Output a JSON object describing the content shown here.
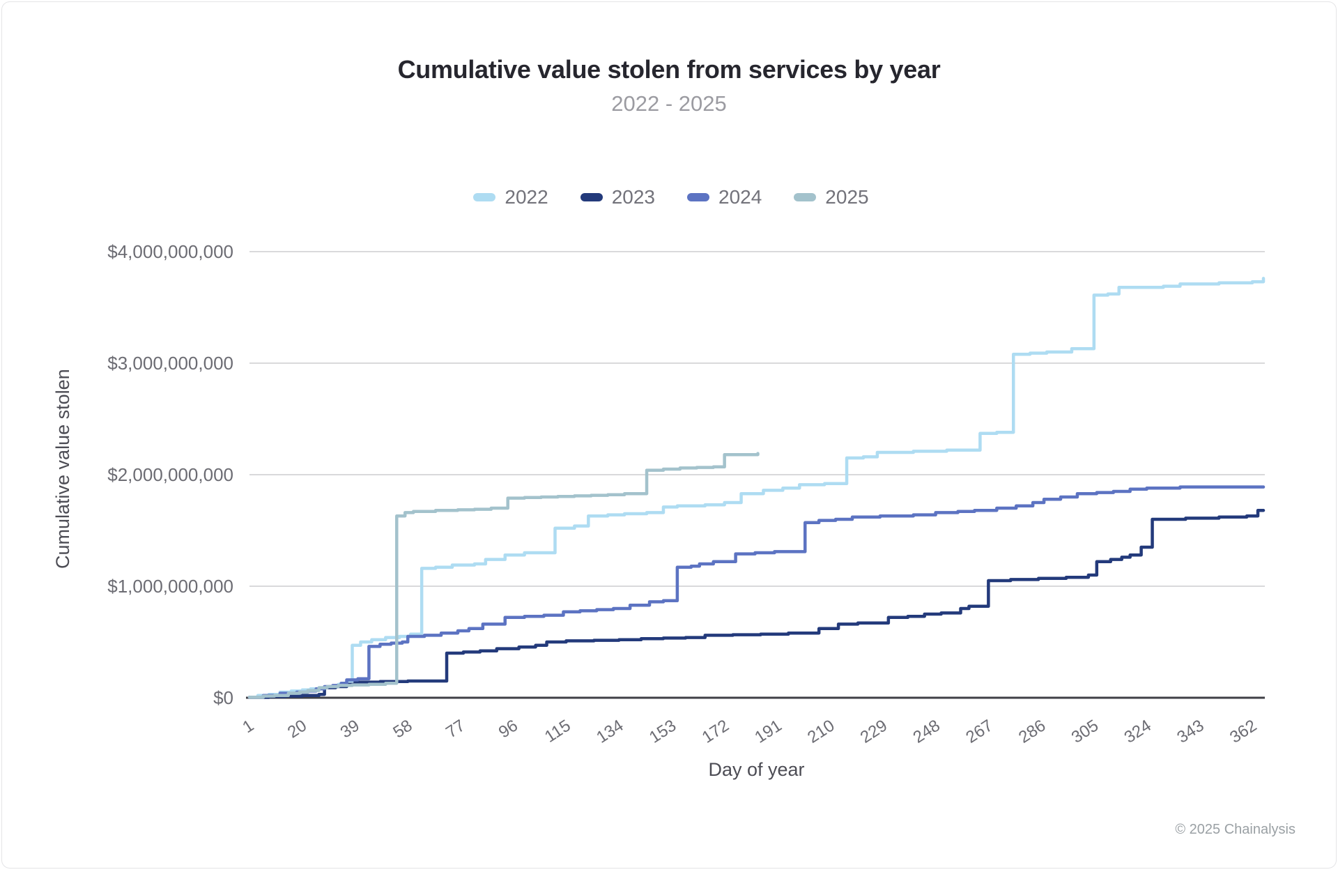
{
  "page": {
    "footer": "© 2025 Chainalysis"
  },
  "chart_data": {
    "type": "line",
    "interpolation": "step-after",
    "title": "Cumulative value stolen from services by year",
    "subtitle": "2022 - 2025",
    "xlabel": "Day of year",
    "ylabel": "Cumulative value stolen",
    "xlim": [
      1,
      366
    ],
    "ylim": [
      0,
      4000000000
    ],
    "x_ticks": [
      1,
      20,
      39,
      58,
      77,
      96,
      115,
      134,
      153,
      172,
      191,
      210,
      229,
      248,
      267,
      286,
      305,
      324,
      343,
      362
    ],
    "y_ticks": [
      0,
      1000000000,
      2000000000,
      3000000000,
      4000000000
    ],
    "y_tick_prefix": "$",
    "grid": "horizontal",
    "legend_position": "top-center",
    "colors": {
      "grid": "#d9d9db",
      "zero_axis": "#3f3f46",
      "title": "#26262e",
      "subtitle": "#9b9ba1",
      "axis_label": "#4c4c54",
      "tick_label": "#6c6c73",
      "legend_label": "#72727a",
      "footer": "#9aa0a4"
    },
    "series": [
      {
        "name": "2022",
        "color": "#aedcf2",
        "points": [
          [
            1,
            5000000
          ],
          [
            4,
            20000000
          ],
          [
            8,
            30000000
          ],
          [
            12,
            50000000
          ],
          [
            16,
            60000000
          ],
          [
            20,
            70000000
          ],
          [
            23,
            80000000
          ],
          [
            26,
            90000000
          ],
          [
            30,
            100000000
          ],
          [
            33,
            120000000
          ],
          [
            36,
            150000000
          ],
          [
            38,
            470000000
          ],
          [
            41,
            500000000
          ],
          [
            45,
            520000000
          ],
          [
            50,
            540000000
          ],
          [
            55,
            550000000
          ],
          [
            59,
            570000000
          ],
          [
            63,
            1160000000
          ],
          [
            68,
            1170000000
          ],
          [
            74,
            1190000000
          ],
          [
            82,
            1200000000
          ],
          [
            86,
            1240000000
          ],
          [
            93,
            1280000000
          ],
          [
            100,
            1300000000
          ],
          [
            111,
            1520000000
          ],
          [
            118,
            1540000000
          ],
          [
            123,
            1630000000
          ],
          [
            130,
            1640000000
          ],
          [
            136,
            1650000000
          ],
          [
            144,
            1660000000
          ],
          [
            150,
            1710000000
          ],
          [
            155,
            1720000000
          ],
          [
            165,
            1730000000
          ],
          [
            172,
            1750000000
          ],
          [
            178,
            1830000000
          ],
          [
            186,
            1860000000
          ],
          [
            193,
            1880000000
          ],
          [
            199,
            1910000000
          ],
          [
            208,
            1920000000
          ],
          [
            216,
            2150000000
          ],
          [
            222,
            2160000000
          ],
          [
            227,
            2200000000
          ],
          [
            240,
            2210000000
          ],
          [
            252,
            2220000000
          ],
          [
            264,
            2370000000
          ],
          [
            270,
            2380000000
          ],
          [
            276,
            3080000000
          ],
          [
            282,
            3090000000
          ],
          [
            288,
            3100000000
          ],
          [
            297,
            3130000000
          ],
          [
            305,
            3610000000
          ],
          [
            310,
            3620000000
          ],
          [
            314,
            3680000000
          ],
          [
            330,
            3690000000
          ],
          [
            336,
            3710000000
          ],
          [
            350,
            3720000000
          ],
          [
            362,
            3730000000
          ],
          [
            366,
            3760000000
          ]
        ]
      },
      {
        "name": "2023",
        "color": "#233a7b",
        "points": [
          [
            1,
            3000000
          ],
          [
            8,
            10000000
          ],
          [
            14,
            15000000
          ],
          [
            20,
            20000000
          ],
          [
            26,
            30000000
          ],
          [
            28,
            90000000
          ],
          [
            32,
            100000000
          ],
          [
            36,
            120000000
          ],
          [
            39,
            140000000
          ],
          [
            48,
            145000000
          ],
          [
            58,
            150000000
          ],
          [
            72,
            400000000
          ],
          [
            78,
            410000000
          ],
          [
            84,
            420000000
          ],
          [
            90,
            440000000
          ],
          [
            98,
            455000000
          ],
          [
            104,
            470000000
          ],
          [
            108,
            500000000
          ],
          [
            115,
            510000000
          ],
          [
            125,
            515000000
          ],
          [
            134,
            520000000
          ],
          [
            142,
            530000000
          ],
          [
            150,
            535000000
          ],
          [
            158,
            540000000
          ],
          [
            165,
            560000000
          ],
          [
            175,
            565000000
          ],
          [
            185,
            570000000
          ],
          [
            195,
            580000000
          ],
          [
            206,
            620000000
          ],
          [
            213,
            660000000
          ],
          [
            220,
            670000000
          ],
          [
            231,
            720000000
          ],
          [
            238,
            730000000
          ],
          [
            244,
            750000000
          ],
          [
            250,
            760000000
          ],
          [
            257,
            800000000
          ],
          [
            260,
            820000000
          ],
          [
            267,
            1050000000
          ],
          [
            275,
            1060000000
          ],
          [
            285,
            1070000000
          ],
          [
            295,
            1080000000
          ],
          [
            303,
            1100000000
          ],
          [
            306,
            1220000000
          ],
          [
            311,
            1240000000
          ],
          [
            315,
            1260000000
          ],
          [
            318,
            1280000000
          ],
          [
            322,
            1350000000
          ],
          [
            326,
            1600000000
          ],
          [
            338,
            1610000000
          ],
          [
            350,
            1620000000
          ],
          [
            360,
            1630000000
          ],
          [
            364,
            1680000000
          ]
        ]
      },
      {
        "name": "2024",
        "color": "#5c73c2",
        "points": [
          [
            1,
            5000000
          ],
          [
            6,
            20000000
          ],
          [
            12,
            40000000
          ],
          [
            18,
            50000000
          ],
          [
            22,
            60000000
          ],
          [
            25,
            80000000
          ],
          [
            28,
            100000000
          ],
          [
            31,
            110000000
          ],
          [
            34,
            130000000
          ],
          [
            36,
            160000000
          ],
          [
            40,
            170000000
          ],
          [
            44,
            460000000
          ],
          [
            48,
            480000000
          ],
          [
            52,
            490000000
          ],
          [
            56,
            500000000
          ],
          [
            58,
            550000000
          ],
          [
            64,
            560000000
          ],
          [
            70,
            580000000
          ],
          [
            76,
            600000000
          ],
          [
            80,
            620000000
          ],
          [
            85,
            660000000
          ],
          [
            93,
            720000000
          ],
          [
            100,
            730000000
          ],
          [
            107,
            740000000
          ],
          [
            114,
            770000000
          ],
          [
            120,
            780000000
          ],
          [
            126,
            790000000
          ],
          [
            132,
            800000000
          ],
          [
            138,
            830000000
          ],
          [
            145,
            860000000
          ],
          [
            150,
            870000000
          ],
          [
            155,
            1170000000
          ],
          [
            160,
            1180000000
          ],
          [
            163,
            1200000000
          ],
          [
            168,
            1220000000
          ],
          [
            176,
            1290000000
          ],
          [
            183,
            1300000000
          ],
          [
            190,
            1310000000
          ],
          [
            201,
            1570000000
          ],
          [
            206,
            1590000000
          ],
          [
            212,
            1600000000
          ],
          [
            218,
            1620000000
          ],
          [
            228,
            1630000000
          ],
          [
            240,
            1640000000
          ],
          [
            248,
            1660000000
          ],
          [
            256,
            1670000000
          ],
          [
            262,
            1680000000
          ],
          [
            270,
            1700000000
          ],
          [
            277,
            1720000000
          ],
          [
            283,
            1750000000
          ],
          [
            287,
            1780000000
          ],
          [
            293,
            1800000000
          ],
          [
            299,
            1830000000
          ],
          [
            306,
            1840000000
          ],
          [
            312,
            1850000000
          ],
          [
            318,
            1870000000
          ],
          [
            324,
            1880000000
          ],
          [
            336,
            1890000000
          ],
          [
            366,
            1890000000
          ]
        ]
      },
      {
        "name": "2025",
        "color": "#a3c2cc",
        "partial": true,
        "points": [
          [
            1,
            5000000
          ],
          [
            6,
            15000000
          ],
          [
            10,
            20000000
          ],
          [
            15,
            40000000
          ],
          [
            19,
            50000000
          ],
          [
            22,
            65000000
          ],
          [
            26,
            90000000
          ],
          [
            29,
            100000000
          ],
          [
            33,
            110000000
          ],
          [
            38,
            115000000
          ],
          [
            44,
            120000000
          ],
          [
            50,
            130000000
          ],
          [
            54,
            1630000000
          ],
          [
            57,
            1660000000
          ],
          [
            60,
            1670000000
          ],
          [
            68,
            1680000000
          ],
          [
            76,
            1685000000
          ],
          [
            82,
            1690000000
          ],
          [
            88,
            1700000000
          ],
          [
            94,
            1790000000
          ],
          [
            100,
            1795000000
          ],
          [
            106,
            1800000000
          ],
          [
            112,
            1805000000
          ],
          [
            118,
            1810000000
          ],
          [
            124,
            1815000000
          ],
          [
            130,
            1820000000
          ],
          [
            136,
            1830000000
          ],
          [
            144,
            2040000000
          ],
          [
            150,
            2050000000
          ],
          [
            156,
            2060000000
          ],
          [
            162,
            2065000000
          ],
          [
            168,
            2070000000
          ],
          [
            172,
            2180000000
          ],
          [
            180,
            2180000000
          ],
          [
            184,
            2190000000
          ]
        ]
      }
    ]
  }
}
